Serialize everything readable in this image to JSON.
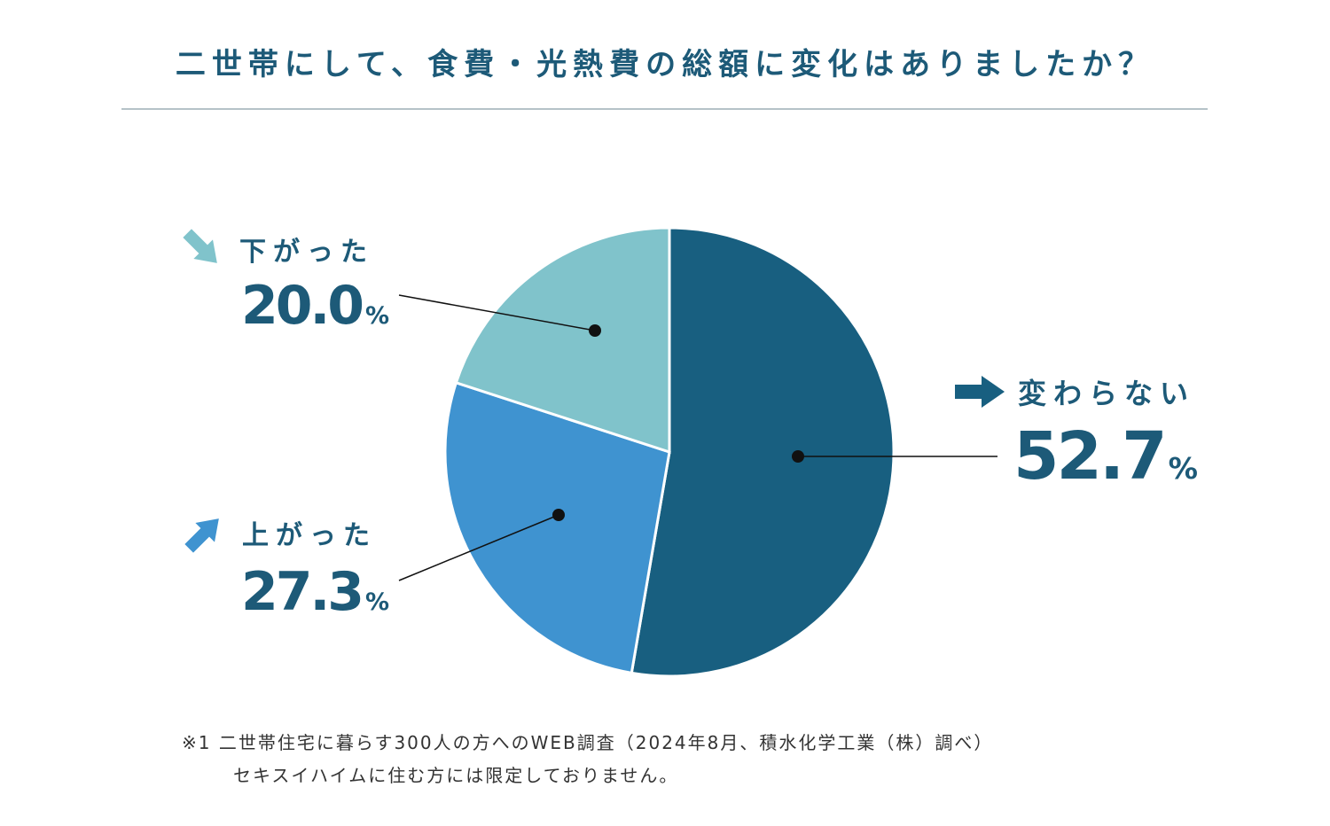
{
  "chart_data": {
    "type": "pie",
    "title": "二世帯にして、食費・光熱費の総額に変化はありましたか？",
    "categories": [
      "変わらない",
      "上がった",
      "下がった"
    ],
    "values": [
      52.7,
      27.3,
      20.0
    ],
    "value_labels": [
      "52.7%",
      "27.3%",
      "20.0%"
    ],
    "colors": [
      "#185f80",
      "#3f93d0",
      "#80c3cb"
    ],
    "notes": [
      "※1 二世帯住宅に暮らす300人の方へのWEB調査（2024年8月、積水化学工業（株）調べ）",
      "セキスイハイムに住む方には限定しておりません。"
    ]
  }
}
